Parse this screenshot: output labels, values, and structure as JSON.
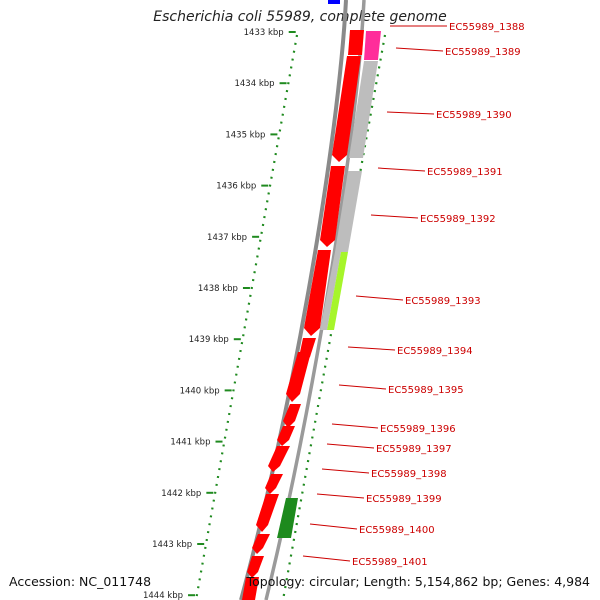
{
  "title": "Escherichia coli 55989, complete genome",
  "accession": "Accession: NC_011748",
  "topology": "Topology: circular; Length: 5,154,862 bp; Genes: 4,984",
  "ticks": [
    "1433 kbp",
    "1434 kbp",
    "1435 kbp",
    "1436 kbp",
    "1437 kbp",
    "1438 kbp",
    "1439 kbp",
    "1440 kbp",
    "1441 kbp",
    "1442 kbp",
    "1443 kbp",
    "1444 kbp"
  ],
  "genes": [
    "EC55989_1388",
    "EC55989_1389",
    "EC55989_1390",
    "EC55989_1391",
    "EC55989_1392",
    "EC55989_1393",
    "EC55989_1394",
    "EC55989_1395",
    "EC55989_1396",
    "EC55989_1397",
    "EC55989_1398",
    "EC55989_1399",
    "EC55989_1400",
    "EC55989_1401"
  ],
  "colors": {
    "cds": "#ff0000",
    "ruler": "#1f8a1f",
    "label": "#cc0000",
    "backbone": "#888888",
    "magenta": "#ff2d9a",
    "lime": "#a6f52a",
    "dark_green": "#1d8a1d",
    "blue": "#0000ff",
    "grey_feature": "#bbbbbb"
  }
}
